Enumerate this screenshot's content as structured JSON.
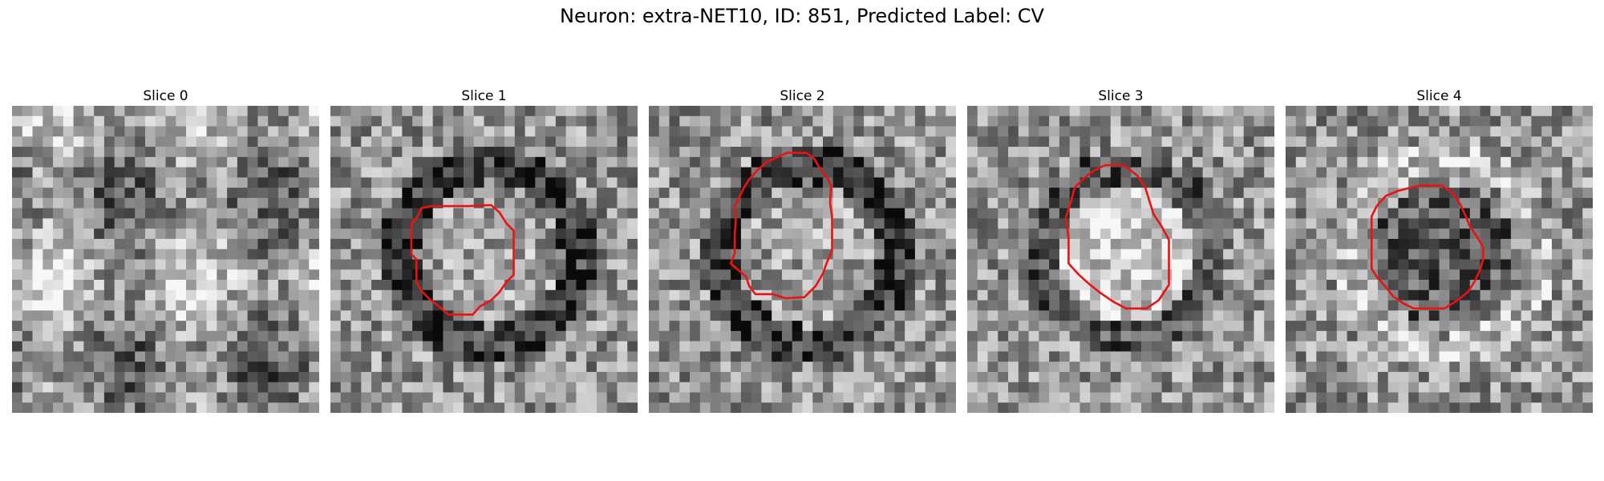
{
  "figure": {
    "title": "Neuron: extra-NET10, ID: 851, Predicted Label: CV"
  },
  "colors": {
    "contour": "#ee1111",
    "background": "#ffffff"
  },
  "panels": [
    {
      "title": "Slice 0",
      "has_contour": false,
      "seed": 11,
      "structure": "diffuse"
    },
    {
      "title": "Slice 1",
      "has_contour": true,
      "seed": 23,
      "structure": "ring-dark"
    },
    {
      "title": "Slice 2",
      "has_contour": true,
      "seed": 37,
      "structure": "ring-dark"
    },
    {
      "title": "Slice 3",
      "has_contour": true,
      "seed": 51,
      "structure": "ring-light"
    },
    {
      "title": "Slice 4",
      "has_contour": true,
      "seed": 67,
      "structure": "blob-dark"
    }
  ]
}
